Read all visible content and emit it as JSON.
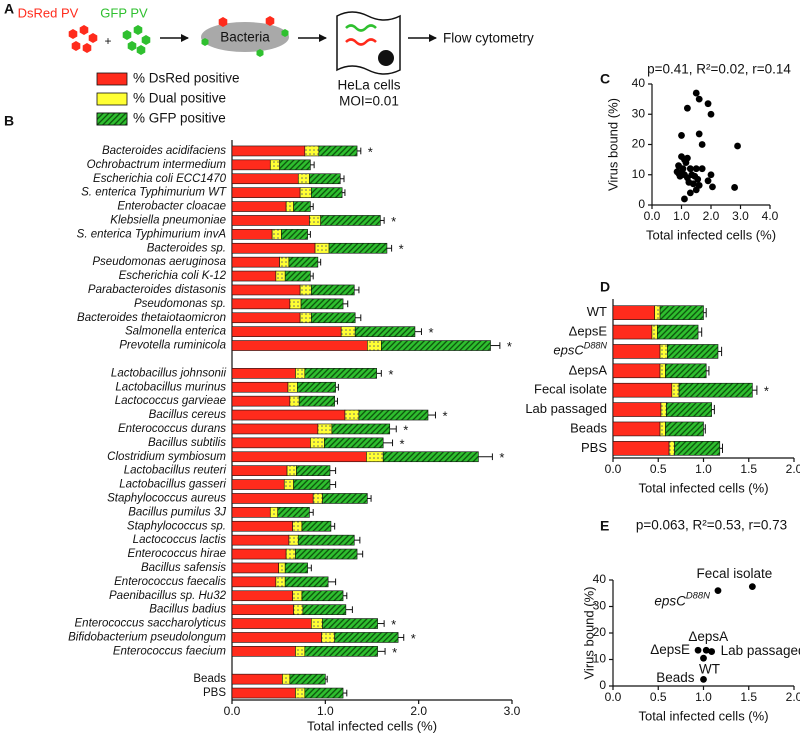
{
  "schematic": {
    "panel": "A",
    "virus_labels": [
      "DsRed PV",
      "GFP PV"
    ],
    "plus": "+",
    "bacteria": "Bacteria",
    "cells": [
      "HeLa cells",
      "MOI=0.01"
    ],
    "readout": "Flow cytometry"
  },
  "chart_data": [
    {
      "type": "bar",
      "panel": "B",
      "orientation": "horizontal",
      "stacked": true,
      "x_label": "Total infected cells (%)",
      "categories": [
        "Bacteroides acidifaciens",
        "Ochrobactrum intermedium",
        "Escherichia coli ECC1470",
        "S. enterica Typhimurium WT",
        "Enterobacter cloacae",
        "Klebsiella pneumoniae",
        "S. enterica Typhimurium invA",
        "Bacteroides sp.",
        "Pseudomonas aeruginosa",
        "Escherichia coli K-12",
        "Parabacteroides distasonis",
        "Pseudomonas sp.",
        "Bacteroides thetaiotaomicron",
        "Salmonella enterica",
        "Prevotella ruminicola",
        null,
        "Lactobacillus johnsonii",
        "Lactobacillus murinus",
        "Lactococcus garvieae",
        "Bacillus cereus",
        "Enterococcus durans",
        "Bacillus subtilis",
        "Clostridium symbiosum",
        "Lactobacillus reuteri",
        "Lactobacillus gasseri",
        "Staphylococcus aureus",
        "Bacillus pumilus 3J",
        "Staphylococcus sp.",
        "Lactococcus lactis",
        "Enterococcus hirae",
        "Bacillus safensis",
        "Enterococcus faecalis",
        "Paenibacillus sp. Hu32",
        "Bacillus badius",
        "Enterococcus saccharolyticus",
        "Bifidobacterium pseudolongum",
        "Enterococcus faecium",
        null,
        "Beads",
        "PBS"
      ],
      "series": [
        {
          "name": "% DsRed positive",
          "color": "#ff2b1c",
          "values": [
            0.78,
            0.41,
            0.71,
            0.73,
            0.58,
            0.83,
            0.43,
            0.89,
            0.51,
            0.47,
            0.73,
            0.62,
            0.73,
            1.17,
            1.45,
            null,
            0.68,
            0.6,
            0.62,
            1.21,
            0.92,
            0.84,
            1.44,
            0.59,
            0.56,
            0.87,
            0.41,
            0.65,
            0.61,
            0.58,
            0.5,
            0.47,
            0.65,
            0.66,
            0.85,
            0.96,
            0.68,
            null,
            0.54,
            0.68
          ]
        },
        {
          "name": "% Dual positive",
          "color": "#ffff33",
          "pattern": "dots",
          "values": [
            0.15,
            0.1,
            0.12,
            0.12,
            0.08,
            0.12,
            0.1,
            0.15,
            0.1,
            0.1,
            0.12,
            0.12,
            0.12,
            0.15,
            0.15,
            null,
            0.1,
            0.1,
            0.1,
            0.15,
            0.15,
            0.15,
            0.18,
            0.1,
            0.1,
            0.1,
            0.08,
            0.1,
            0.1,
            0.1,
            0.07,
            0.1,
            0.1,
            0.1,
            0.12,
            0.14,
            0.1,
            null,
            0.08,
            0.1
          ]
        },
        {
          "name": "% GFP positive",
          "color": "#2fc02f",
          "pattern": "hatch",
          "values": [
            0.41,
            0.33,
            0.33,
            0.33,
            0.18,
            0.64,
            0.28,
            0.62,
            0.31,
            0.27,
            0.46,
            0.45,
            0.47,
            0.64,
            1.17,
            null,
            0.77,
            0.41,
            0.38,
            0.74,
            0.62,
            0.63,
            1.02,
            0.36,
            0.39,
            0.48,
            0.34,
            0.31,
            0.6,
            0.66,
            0.24,
            0.46,
            0.44,
            0.46,
            0.59,
            0.68,
            0.78,
            null,
            0.38,
            0.41
          ]
        }
      ],
      "errors": [
        0.04,
        0.04,
        0.04,
        0.03,
        0.03,
        0.04,
        0.03,
        0.05,
        0.03,
        0.03,
        0.05,
        0.05,
        0.06,
        0.07,
        0.1,
        null,
        0.05,
        0.03,
        0.03,
        0.08,
        0.07,
        0.1,
        0.15,
        0.06,
        0.06,
        0.04,
        0.04,
        0.04,
        0.06,
        0.06,
        0.04,
        0.08,
        0.04,
        0.07,
        0.07,
        0.06,
        0.08,
        null,
        0.02,
        0.04
      ],
      "significance": [
        "*",
        null,
        null,
        null,
        null,
        "*",
        null,
        "*",
        null,
        null,
        null,
        null,
        null,
        "*",
        "*",
        null,
        "*",
        null,
        null,
        "*",
        "*",
        "*",
        "*",
        null,
        null,
        null,
        null,
        null,
        null,
        null,
        null,
        null,
        null,
        null,
        "*",
        "*",
        "*",
        null,
        null,
        null
      ],
      "xlim": [
        0,
        3
      ],
      "xticks": [
        {
          "value": 0,
          "label": "0.0"
        },
        {
          "value": 1,
          "label": "1.0"
        },
        {
          "value": 2,
          "label": "2.0"
        },
        {
          "value": 3,
          "label": "3.0"
        }
      ]
    },
    {
      "type": "scatter",
      "panel": "C",
      "title": "p=0.41, R²=0.02, r=0.14",
      "x_label": "Total infected cells (%)",
      "y_label": "Virus bound (%)",
      "x": [
        1.5,
        1.6,
        1.2,
        1.9,
        2.0,
        1.6,
        1.7,
        1.0,
        1.0,
        1.1,
        1.2,
        0.9,
        1.05,
        1.15,
        1.3,
        1.0,
        0.9,
        0.95,
        1.1,
        1.2,
        1.35,
        1.45,
        1.5,
        1.55,
        1.25,
        1.4,
        1.6,
        1.1,
        1.3,
        1.5,
        2.0,
        1.9,
        2.05,
        2.8,
        2.9,
        1.7,
        0.85
      ],
      "values": [
        37,
        35,
        32,
        33.5,
        30,
        23.5,
        20,
        23,
        16,
        15,
        15.5,
        13,
        12,
        14,
        12,
        11,
        10.5,
        9.5,
        10,
        9,
        10,
        9.5,
        12,
        8.5,
        7.5,
        7,
        6.5,
        2,
        4,
        5,
        10,
        8,
        6,
        5.8,
        19.5,
        12,
        11
      ],
      "color": "#000000",
      "xlim": [
        0,
        4
      ],
      "xticks": [
        {
          "value": 0,
          "label": "0.0"
        },
        {
          "value": 1,
          "label": "1.0"
        },
        {
          "value": 2,
          "label": "2.0"
        },
        {
          "value": 3,
          "label": "3.0"
        },
        {
          "value": 4,
          "label": "4.0"
        }
      ],
      "ylim": [
        0,
        40
      ],
      "yticks": [
        0,
        10,
        20,
        30,
        40
      ]
    },
    {
      "type": "bar",
      "panel": "D",
      "orientation": "horizontal",
      "stacked": true,
      "x_label": "Total infected cells (%)",
      "categories": [
        "WT",
        "ΔepsE",
        {
          "label": "epsC",
          "superscript": "D88N"
        },
        "ΔepsA",
        "Fecal isolate",
        "Lab passaged",
        "Beads",
        "PBS"
      ],
      "series": [
        {
          "color": "#ff2b1c",
          "values": [
            0.46,
            0.43,
            0.52,
            0.52,
            0.65,
            0.53,
            0.52,
            0.62
          ]
        },
        {
          "color": "#ffff33",
          "pattern": "dots",
          "values": [
            0.06,
            0.06,
            0.08,
            0.06,
            0.08,
            0.06,
            0.06,
            0.06
          ]
        },
        {
          "color": "#2fc02f",
          "pattern": "hatch",
          "values": [
            0.48,
            0.45,
            0.56,
            0.45,
            0.81,
            0.5,
            0.42,
            0.5
          ]
        }
      ],
      "errors": [
        0.03,
        0.04,
        0.04,
        0.03,
        0.05,
        0.03,
        0.02,
        0.03
      ],
      "significance": [
        null,
        null,
        null,
        null,
        "*",
        null,
        null,
        null
      ],
      "xlim": [
        0,
        2
      ],
      "xticks": [
        {
          "value": 0,
          "label": "0.0"
        },
        0.5,
        {
          "value": 1,
          "label": "1.0"
        },
        1.5,
        {
          "value": 2,
          "label": "2.0"
        }
      ]
    },
    {
      "type": "scatter",
      "panel": "E",
      "title": "p=0.063, R²=0.53, r=0.73",
      "x_label": "Total infected cells (%)",
      "y_label": "Virus bound (%)",
      "labels": [
        "Fecal isolate",
        {
          "label": "epsC",
          "superscript": "D88N"
        },
        "ΔepsA",
        "ΔepsE",
        "Lab passaged",
        "WT",
        "Beads"
      ],
      "x": [
        1.54,
        1.16,
        1.03,
        0.94,
        1.09,
        1.0,
        1.0
      ],
      "values": [
        37.5,
        36,
        13.5,
        13.5,
        13,
        10.5,
        2.5
      ],
      "color": "#000000",
      "xlim": [
        0,
        2
      ],
      "xticks": [
        {
          "value": 0,
          "label": "0.0"
        },
        0.5,
        {
          "value": 1,
          "label": "1.0"
        },
        1.5,
        {
          "value": 2,
          "label": "2.0"
        }
      ],
      "ylim": [
        0,
        40
      ],
      "yticks": [
        0,
        10,
        20,
        30,
        40
      ]
    }
  ]
}
